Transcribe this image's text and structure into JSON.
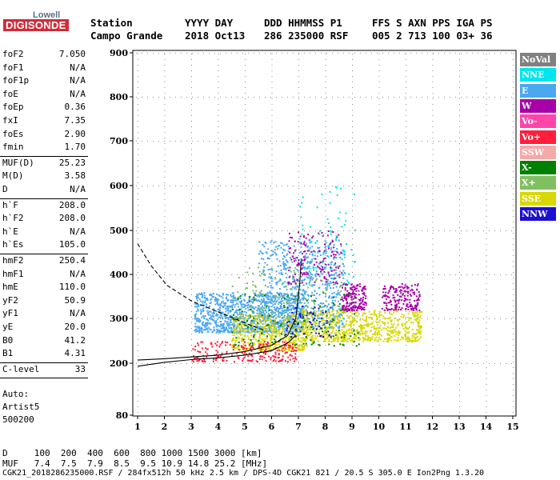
{
  "logo": {
    "top": "Lowell",
    "main": "DIGISONDE"
  },
  "header": {
    "labels": [
      "Station",
      "YYYY DAY",
      "DDD HHMMSS P1",
      "FFS S AXN PPS IGA PS"
    ],
    "values": [
      "Campo Grande",
      "2018 Oct13",
      "286 235000 RSF",
      "005 2 713 100 03+ 36"
    ]
  },
  "params": [
    {
      "name": "foF2",
      "value": "7.050"
    },
    {
      "name": "foF1",
      "value": "N/A"
    },
    {
      "name": "foF1p",
      "value": "N/A"
    },
    {
      "name": "foE",
      "value": "N/A"
    },
    {
      "name": "foEp",
      "value": "0.36"
    },
    {
      "name": "fxI",
      "value": "7.35"
    },
    {
      "name": "foEs",
      "value": "2.90"
    },
    {
      "name": "fmin",
      "value": "1.70"
    },
    {
      "name": "MUF(D)",
      "value": "25.23"
    },
    {
      "name": "M(D)",
      "value": "3.58"
    },
    {
      "name": "D",
      "value": "N/A"
    },
    {
      "name": "h`F",
      "value": "208.0"
    },
    {
      "name": "h`F2",
      "value": "208.0"
    },
    {
      "name": "h`E",
      "value": "N/A"
    },
    {
      "name": "h`Es",
      "value": "105.0"
    },
    {
      "name": "hmF2",
      "value": "250.4"
    },
    {
      "name": "hmF1",
      "value": "N/A"
    },
    {
      "name": "hmE",
      "value": "110.0"
    },
    {
      "name": "yF2",
      "value": "50.9"
    },
    {
      "name": "yF1",
      "value": "N/A"
    },
    {
      "name": "yE",
      "value": "20.0"
    },
    {
      "name": "B0",
      "value": "41.2"
    },
    {
      "name": "B1",
      "value": "4.31"
    },
    {
      "name": "C-level",
      "value": "33"
    }
  ],
  "auto": {
    "line1": "Auto:",
    "line2": "Artist5",
    "line3": "500200"
  },
  "footer": {
    "d_row": "D     100  200  400  600  800 1000 1500 3000 [km]",
    "muf_row": "MUF   7.4  7.5  7.9  8.5  9.5 10.9 14.8 25.2 [MHz]",
    "file_row": "CGK21_2018286235000.RSF / 284fx512h 50 kHz 2.5 km / DPS-4D CGK21 821 / 20.5 S 305.0 E Ion2Png 1.3.20"
  },
  "legend": [
    {
      "label": "NoVal",
      "color": "#808080"
    },
    {
      "label": "NNE",
      "color": "#00e5ee"
    },
    {
      "label": "E",
      "color": "#4aa8f0"
    },
    {
      "label": "W",
      "color": "#a800a8"
    },
    {
      "label": "Vo-",
      "color": "#ff44aa"
    },
    {
      "label": "Vo+",
      "color": "#ff1f3c"
    },
    {
      "label": "SSW",
      "color": "#f4a8a8"
    },
    {
      "label": "X-",
      "color": "#008000"
    },
    {
      "label": "X+",
      "color": "#80c060"
    },
    {
      "label": "SSE",
      "color": "#d8d800"
    },
    {
      "label": "NNW",
      "color": "#1a10d0"
    }
  ],
  "chart_data": {
    "type": "scatter",
    "x_ticks": [
      1,
      2,
      3,
      4,
      5,
      6,
      7,
      8,
      9,
      10,
      11,
      12,
      13,
      14,
      15
    ],
    "y_ticks": [
      80,
      200,
      300,
      400,
      500,
      600,
      700,
      800,
      900
    ],
    "xlim": [
      0.9,
      15.1
    ],
    "ylim": [
      80,
      900
    ],
    "grid": true,
    "regions": [
      {
        "name": "E",
        "x": [
          3.1,
          7.2
        ],
        "y": [
          270,
          360
        ],
        "density": 1100
      },
      {
        "name": "E",
        "x": [
          5.5,
          8.7
        ],
        "y": [
          280,
          480
        ],
        "density": 700
      },
      {
        "name": "SSE",
        "x": [
          4.5,
          7.3
        ],
        "y": [
          230,
          310
        ],
        "density": 500
      },
      {
        "name": "SSE",
        "x": [
          7.1,
          11.6
        ],
        "y": [
          250,
          320
        ],
        "density": 700
      },
      {
        "name": "W",
        "x": [
          8.6,
          9.5
        ],
        "y": [
          320,
          380
        ],
        "density": 180
      },
      {
        "name": "W",
        "x": [
          10.1,
          11.5
        ],
        "y": [
          320,
          380
        ],
        "density": 180
      },
      {
        "name": "W",
        "x": [
          6.6,
          8.6
        ],
        "y": [
          380,
          500
        ],
        "density": 150
      },
      {
        "name": "X-",
        "x": [
          4.5,
          9.3
        ],
        "y": [
          240,
          360
        ],
        "density": 160
      },
      {
        "name": "Vo+",
        "x": [
          3,
          6.9
        ],
        "y": [
          205,
          250
        ],
        "density": 220
      },
      {
        "name": "X+",
        "x": [
          4.5,
          8.7
        ],
        "y": [
          300,
          420
        ],
        "density": 120
      },
      {
        "name": "NNE",
        "x": [
          7,
          9.1
        ],
        "y": [
          380,
          600
        ],
        "density": 80
      },
      {
        "name": "NNW",
        "x": [
          6.5,
          8.2
        ],
        "y": [
          260,
          330
        ],
        "density": 60
      }
    ],
    "curves": [
      {
        "name": "profile-line",
        "style": "solid",
        "points": [
          [
            1,
            207
          ],
          [
            2,
            210
          ],
          [
            3,
            214
          ],
          [
            4,
            218
          ],
          [
            5,
            226
          ],
          [
            6,
            240
          ],
          [
            6.6,
            262
          ],
          [
            6.9,
            300
          ],
          [
            7.05,
            380
          ],
          [
            7.1,
            430
          ]
        ]
      },
      {
        "name": "profile-lower",
        "style": "solid",
        "points": [
          [
            1,
            193
          ],
          [
            2,
            202
          ],
          [
            3,
            208
          ],
          [
            4,
            212
          ],
          [
            5,
            218
          ],
          [
            6,
            228
          ],
          [
            6.6,
            245
          ],
          [
            6.9,
            262
          ]
        ]
      },
      {
        "name": "profile-dashed",
        "style": "dashed",
        "points": [
          [
            1,
            470
          ],
          [
            1.5,
            420
          ],
          [
            2.1,
            375
          ],
          [
            3,
            340
          ],
          [
            4,
            315
          ],
          [
            4.6,
            300
          ],
          [
            5.2,
            285
          ],
          [
            5.8,
            272
          ]
        ]
      }
    ]
  }
}
